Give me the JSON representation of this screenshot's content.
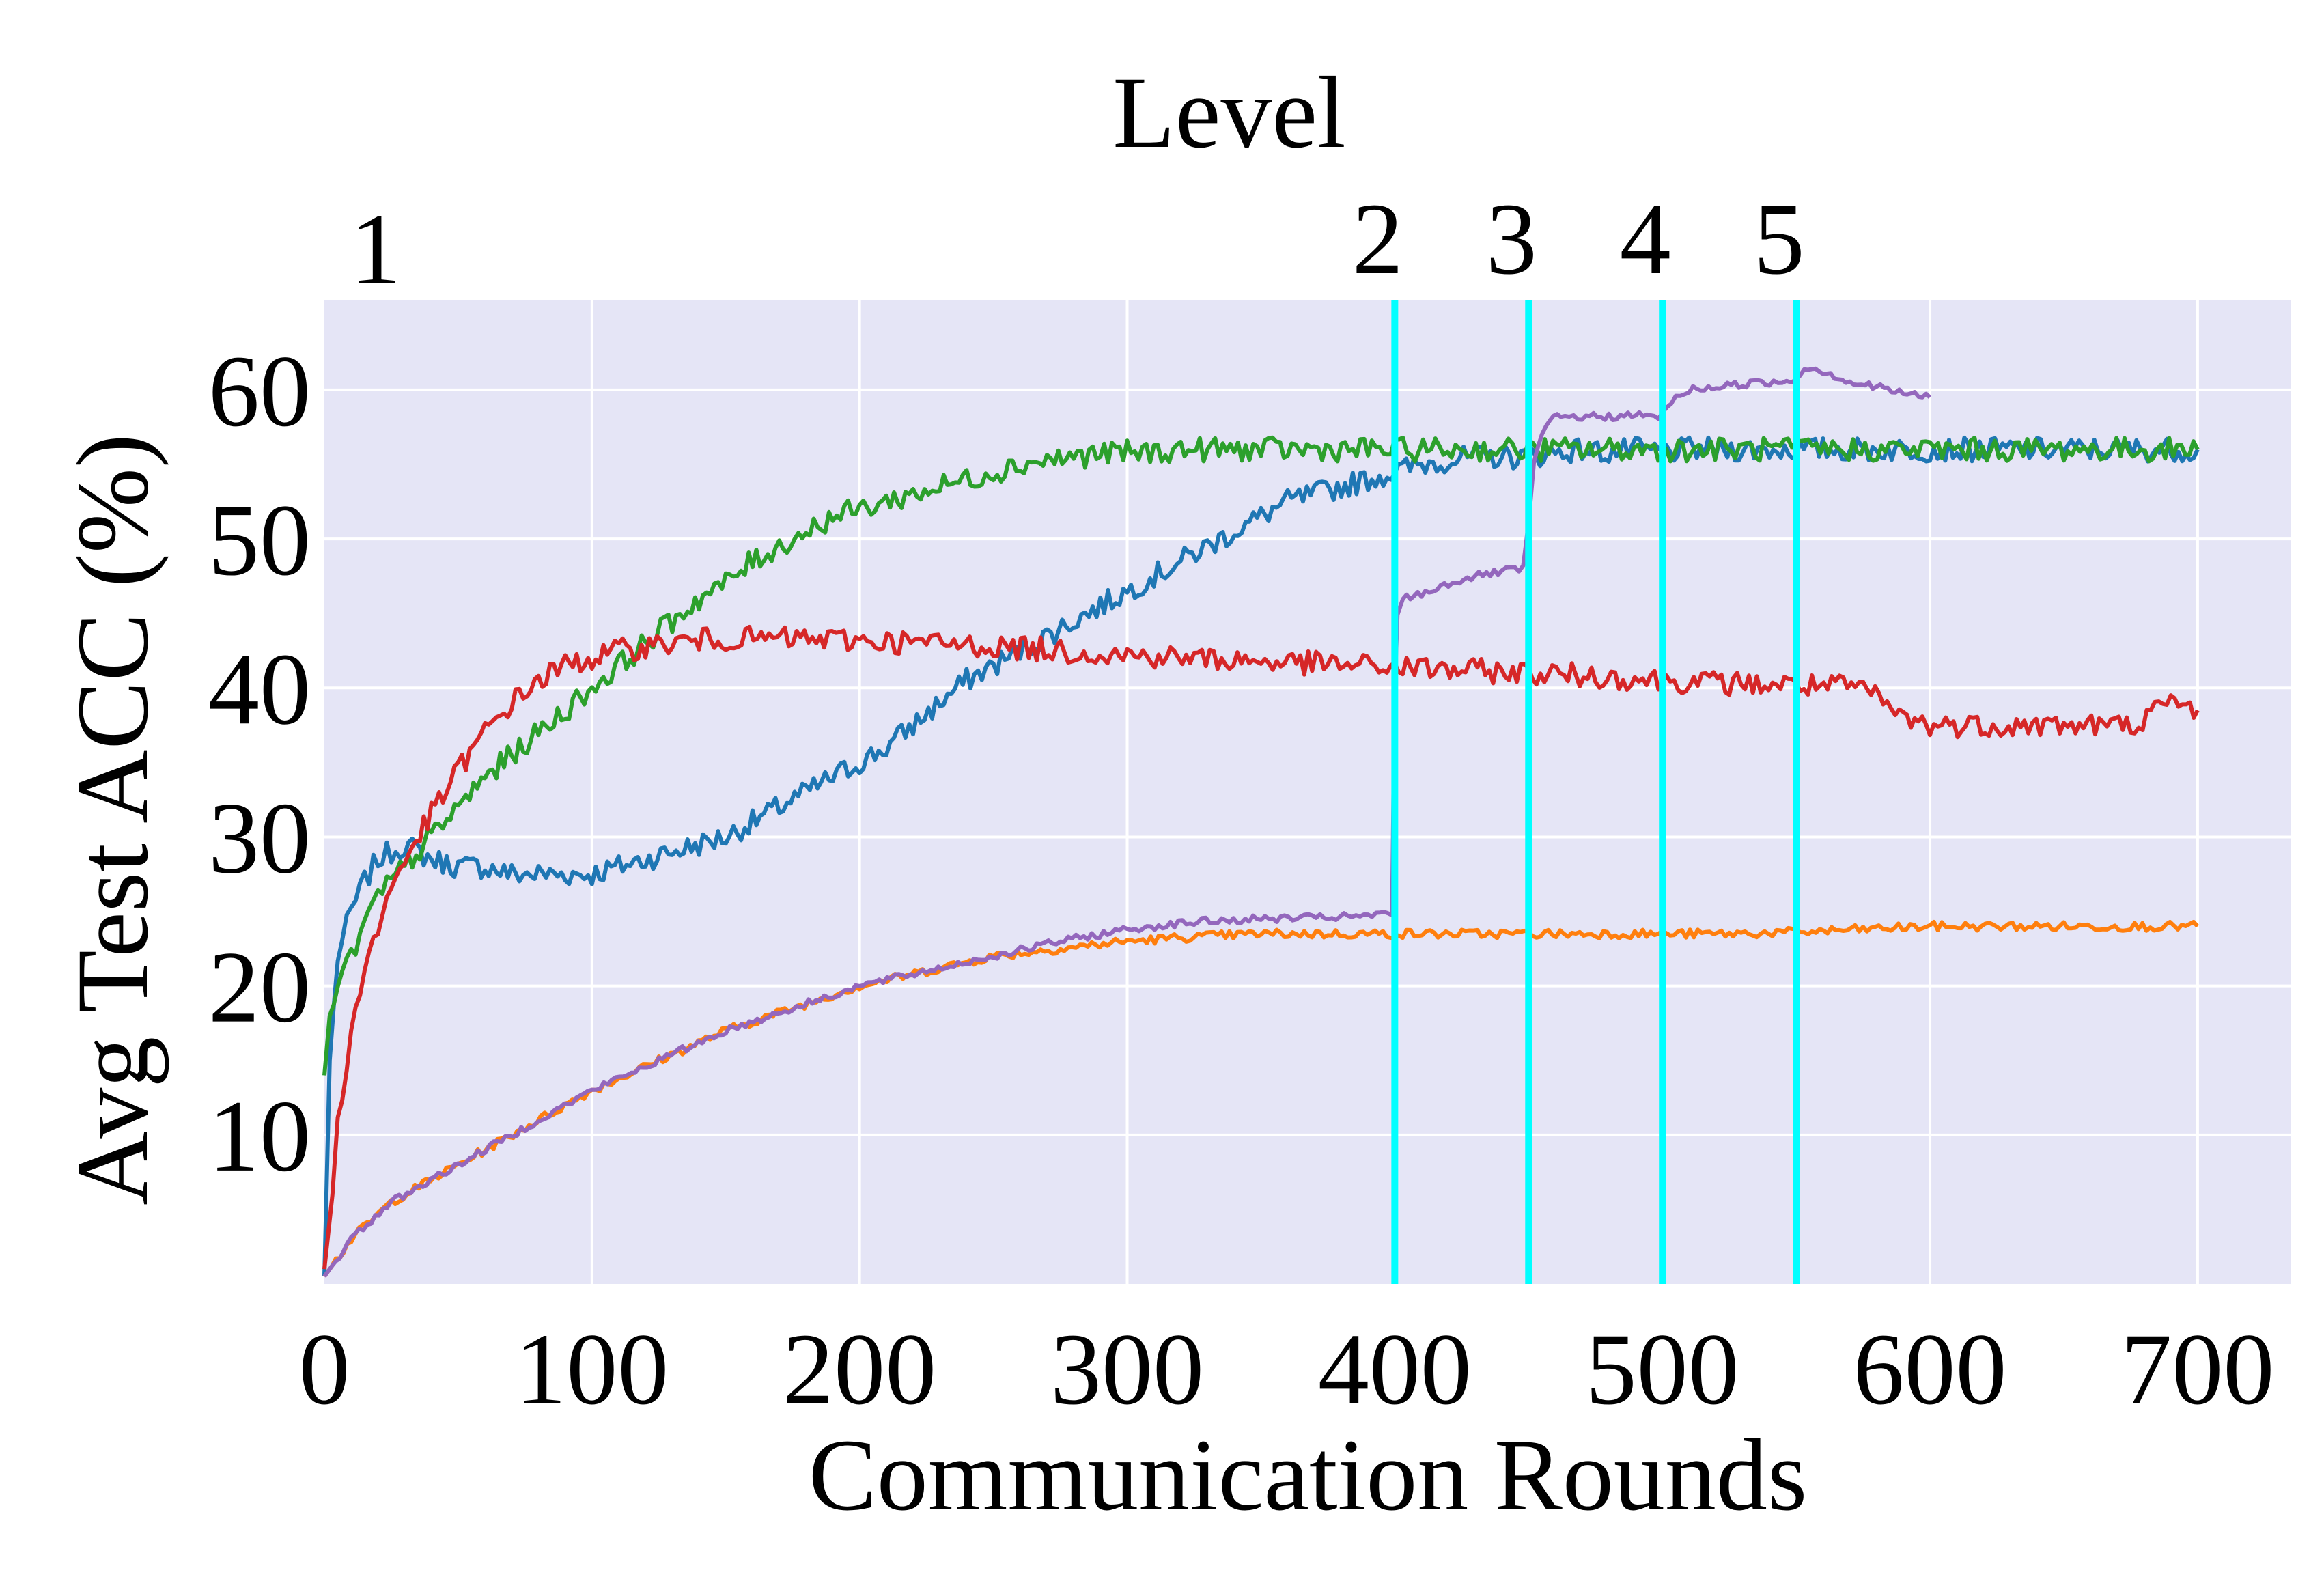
{
  "chart_data": {
    "type": "line",
    "title": "",
    "xlabel": "Communication Rounds",
    "ylabel": "Avg Test ACC (%)",
    "top_axis_label": "Level",
    "xlim": [
      0,
      735
    ],
    "ylim": [
      0,
      66
    ],
    "x_ticks": [
      0,
      100,
      200,
      300,
      400,
      500,
      600,
      700
    ],
    "y_ticks": [
      10,
      20,
      30,
      40,
      50,
      60
    ],
    "grid": true,
    "legend": "none",
    "level_markers": [
      {
        "label": "1",
        "x": 0
      },
      {
        "label": "2",
        "x": 400
      },
      {
        "label": "3",
        "x": 450
      },
      {
        "label": "4",
        "x": 500
      },
      {
        "label": "5",
        "x": 550
      }
    ],
    "marker_line_color": "#00ffff",
    "series": [
      {
        "color": "#1f77b4",
        "x": [
          0,
          2,
          5,
          10,
          15,
          20,
          25,
          30,
          40,
          50,
          60,
          70,
          80,
          90,
          100,
          110,
          120,
          130,
          140,
          150,
          160,
          170,
          180,
          190,
          200,
          210,
          220,
          230,
          240,
          250,
          260,
          270,
          280,
          290,
          300,
          310,
          320,
          330,
          340,
          350,
          360,
          370,
          380,
          390,
          400,
          410,
          420,
          430,
          440,
          450,
          460,
          470,
          480,
          490,
          500,
          510,
          520,
          530,
          540,
          550,
          560,
          570,
          580,
          590,
          600,
          610,
          620,
          630,
          640,
          650,
          660,
          670,
          680,
          690,
          700
        ],
        "y": [
          0.5,
          15,
          22,
          25,
          27,
          28.5,
          29,
          29.5,
          28.5,
          28,
          28,
          27.5,
          27.5,
          27.5,
          27.5,
          28,
          28.5,
          29,
          29.5,
          30,
          31,
          32,
          33,
          34,
          35,
          36,
          37.5,
          39,
          40.5,
          41.5,
          42.5,
          43.5,
          44.5,
          45.5,
          46.5,
          47.5,
          48.5,
          49.5,
          50.5,
          51.5,
          52.5,
          53,
          53.5,
          54,
          54.5,
          55,
          55.3,
          55.5,
          55.5,
          55.5,
          55.8,
          56,
          55.8,
          56,
          55.8,
          56,
          56,
          56,
          56,
          56,
          56,
          56,
          56,
          56,
          56,
          56,
          56,
          56,
          56,
          56,
          56,
          56,
          56,
          56,
          56
        ]
      },
      {
        "color": "#ff7f0e",
        "x": [
          0,
          10,
          25,
          50,
          75,
          100,
          125,
          150,
          175,
          200,
          225,
          250,
          275,
          300,
          325,
          350,
          375,
          400,
          425,
          450,
          475,
          500,
          525,
          550,
          575,
          600,
          625,
          650,
          675,
          700
        ],
        "y": [
          0.5,
          3,
          5.5,
          8,
          10.5,
          13,
          15,
          17,
          18.5,
          20,
          21,
          22,
          22.5,
          23,
          23.3,
          23.5,
          23.5,
          23.5,
          23.5,
          23.5,
          23.5,
          23.5,
          23.5,
          23.6,
          23.8,
          24,
          24,
          24,
          24,
          24
        ]
      },
      {
        "color": "#2ca02c",
        "x": [
          0,
          2,
          5,
          10,
          15,
          20,
          25,
          30,
          40,
          50,
          60,
          70,
          80,
          90,
          100,
          110,
          120,
          130,
          140,
          150,
          160,
          170,
          180,
          190,
          200,
          210,
          220,
          230,
          240,
          250,
          260,
          270,
          280,
          290,
          300,
          310,
          320,
          330,
          340,
          350,
          360,
          370,
          380,
          390,
          400,
          450,
          500,
          550,
          600,
          650,
          700
        ],
        "y": [
          14,
          18,
          20,
          22,
          24,
          26,
          27,
          28,
          30,
          32,
          34,
          35.5,
          37,
          38.5,
          40,
          41.5,
          43,
          44.5,
          46,
          47,
          48.5,
          49.5,
          50.5,
          51.5,
          52,
          52.5,
          53,
          53.5,
          54,
          54.5,
          55,
          55.3,
          55.5,
          55.7,
          55.8,
          55.8,
          56,
          56,
          56,
          56,
          56,
          56,
          56,
          56,
          56,
          56,
          56,
          56,
          56,
          56,
          56
        ]
      },
      {
        "color": "#d62728",
        "x": [
          0,
          3,
          5,
          10,
          15,
          20,
          25,
          30,
          40,
          50,
          60,
          70,
          80,
          90,
          100,
          110,
          120,
          130,
          140,
          150,
          175,
          200,
          225,
          250,
          275,
          300,
          325,
          350,
          375,
          400,
          425,
          450,
          475,
          500,
          525,
          550,
          575,
          590,
          600,
          625,
          650,
          675,
          690,
          700
        ],
        "y": [
          1,
          6,
          11,
          17,
          21,
          24,
          26.5,
          28.5,
          31.5,
          34.5,
          37,
          39,
          40.5,
          41.5,
          42,
          42.5,
          42.8,
          43,
          43.2,
          43.3,
          43.3,
          43.2,
          43,
          42.8,
          42.5,
          42.2,
          42,
          41.8,
          41.6,
          41.4,
          41.2,
          41,
          40.8,
          40.5,
          40.3,
          40.2,
          40,
          38,
          37.5,
          37.5,
          37.5,
          37.5,
          39,
          38.5
        ]
      },
      {
        "color": "#9467bd",
        "x": [
          0,
          10,
          25,
          50,
          75,
          100,
          125,
          150,
          175,
          200,
          225,
          250,
          275,
          300,
          325,
          350,
          375,
          390,
          399,
          400,
          401,
          403,
          410,
          420,
          430,
          440,
          448,
          450,
          452,
          455,
          458,
          462,
          470,
          480,
          490,
          497,
          500,
          505,
          510,
          520,
          530,
          540,
          548,
          550,
          553,
          560,
          570,
          580,
          590,
          600
        ],
        "y": [
          0.5,
          3,
          5.5,
          8,
          10.5,
          13,
          15,
          17,
          18.5,
          20,
          21,
          22,
          23,
          23.8,
          24.3,
          24.5,
          24.6,
          24.7,
          24.8,
          40,
          45,
          46,
          46.3,
          47,
          47.5,
          47.8,
          48,
          51,
          55,
          57,
          58,
          58.2,
          58.2,
          58.2,
          58.3,
          58.2,
          58.3,
          59.5,
          60,
          60.2,
          60.4,
          60.5,
          60.6,
          60.8,
          61.5,
          61.3,
          60.5,
          60.2,
          59.8,
          59.5
        ]
      }
    ]
  }
}
